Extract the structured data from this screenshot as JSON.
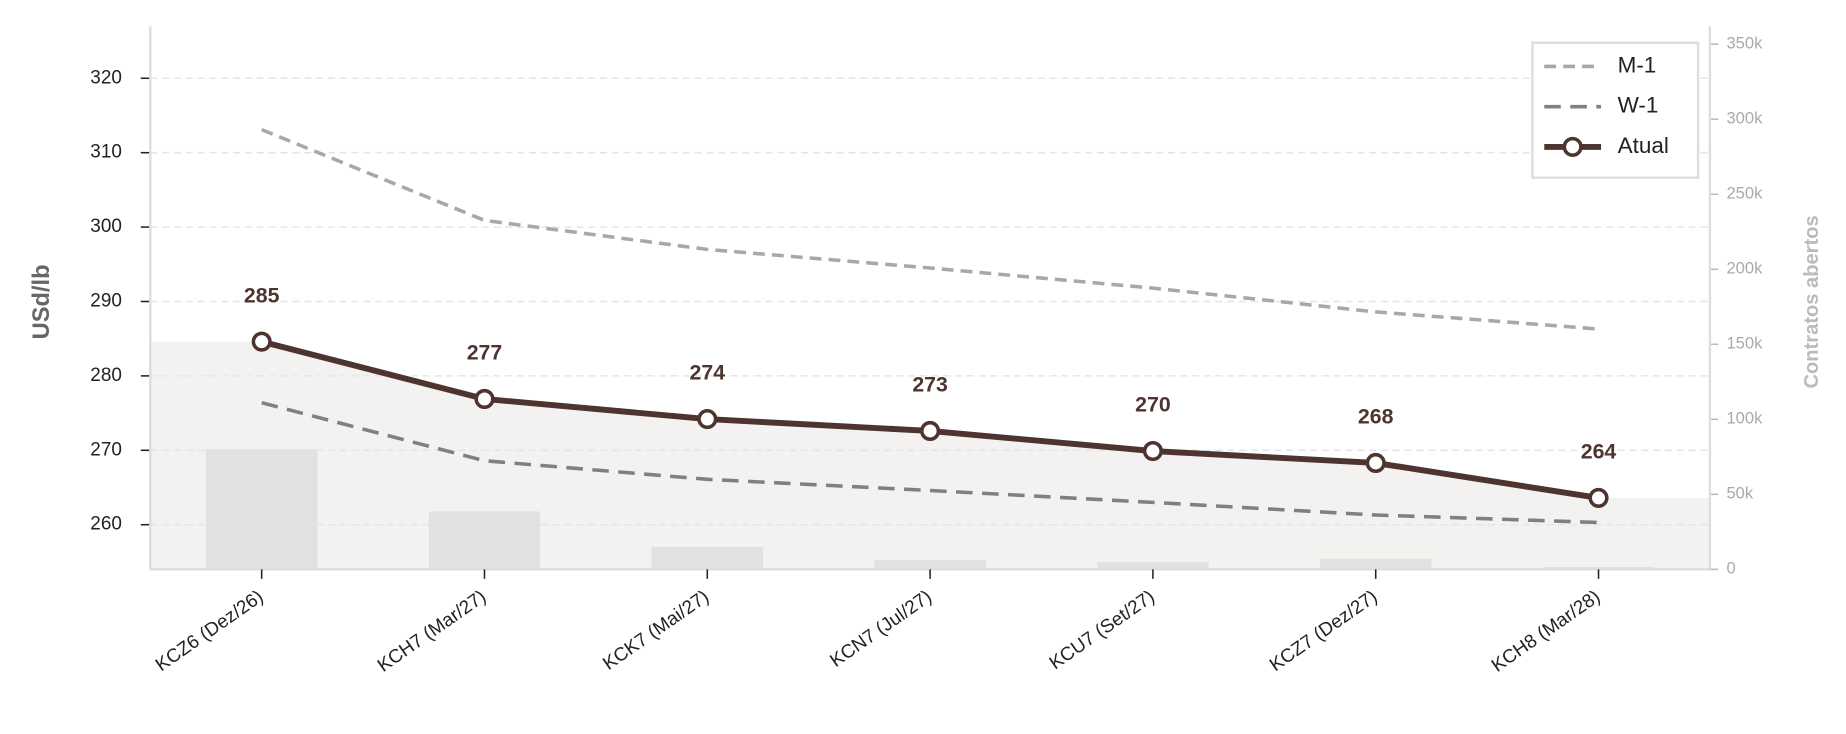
{
  "chart_data": {
    "type": "line",
    "categories": [
      "KCZ6 (Dez/26)",
      "KCH7 (Mar/27)",
      "KCK7 (Mai/27)",
      "KCN7 (Jul/27)",
      "KCU7 (Set/27)",
      "KCZ7 (Dez/27)",
      "KCH8 (Mar/28)"
    ],
    "ylabel": "USd/lb",
    "y2label": "Contratos abertos",
    "ylim": [
      254,
      327
    ],
    "yticks": [
      260,
      270,
      280,
      290,
      300,
      310,
      320
    ],
    "y2lim": [
      0,
      362000
    ],
    "y2ticks": [
      0,
      {
        "value": 50000,
        "label": "50k"
      },
      {
        "value": 100000,
        "label": "100k"
      },
      {
        "value": 150000,
        "label": "150k"
      },
      {
        "value": 200000,
        "label": "200k"
      },
      {
        "value": 250000,
        "label": "250k"
      },
      {
        "value": 300000,
        "label": "300k"
      },
      {
        "value": 350000,
        "label": "350k"
      }
    ],
    "grid": true,
    "legend": "upper right",
    "series": [
      {
        "name": "M-1",
        "color": "#a8a8a8",
        "linestyle": "dashed",
        "values": [
          313.1,
          300.9,
          297.0,
          294.5,
          291.8,
          288.6,
          286.3
        ]
      },
      {
        "name": "W-1",
        "color": "#808080",
        "linestyle": "dashed",
        "values": [
          276.4,
          268.6,
          266.1,
          264.6,
          263.0,
          261.3,
          260.3
        ]
      },
      {
        "name": "Atual",
        "color": "#4e342e",
        "linestyle": "solid",
        "marker": "o",
        "values": [
          284.6,
          276.9,
          274.2,
          272.6,
          269.9,
          268.3,
          263.6
        ],
        "value_labels": [
          "285",
          "277",
          "274",
          "273",
          "270",
          "268",
          "264"
        ]
      },
      {
        "type": "bar",
        "axis": "y2",
        "color": "#e3e1df",
        "values": [
          80000,
          38600,
          15000,
          6300,
          4700,
          7000,
          1600
        ]
      }
    ]
  }
}
